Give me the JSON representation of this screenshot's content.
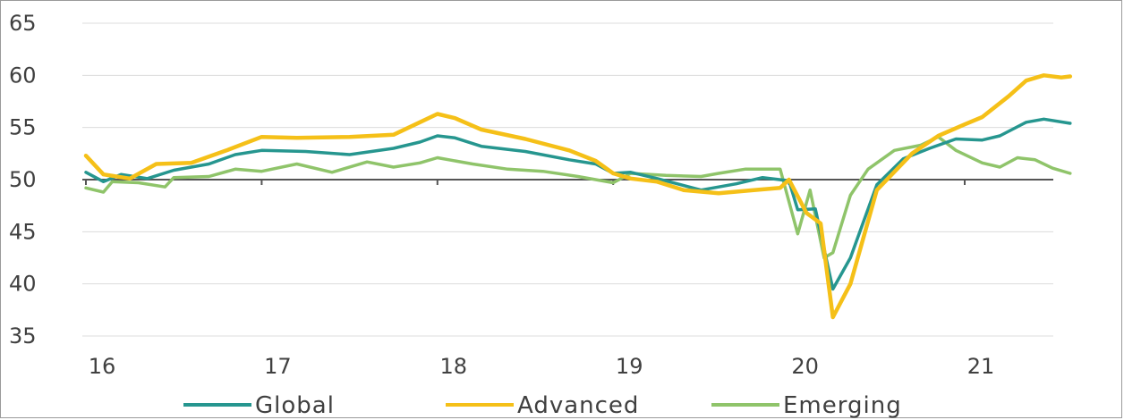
{
  "chart_data": {
    "type": "line",
    "title": "",
    "xlabel": "",
    "ylabel": "",
    "xlim": [
      2016.0,
      2021.65
    ],
    "ylim": [
      35,
      65
    ],
    "reference_line": 50,
    "grid": "horizontal",
    "legend_position": "bottom",
    "x_ticks": [
      {
        "value": 2016,
        "label": "16"
      },
      {
        "value": 2017,
        "label": "17"
      },
      {
        "value": 2018,
        "label": "18"
      },
      {
        "value": 2019,
        "label": "19"
      },
      {
        "value": 2020,
        "label": "20"
      },
      {
        "value": 2021,
        "label": "21"
      }
    ],
    "y_ticks": [
      {
        "value": 65,
        "label": "65"
      },
      {
        "value": 60,
        "label": "60"
      },
      {
        "value": 55,
        "label": "55"
      },
      {
        "value": 50,
        "label": "50"
      },
      {
        "value": 45,
        "label": "45"
      },
      {
        "value": 40,
        "label": "40"
      },
      {
        "value": 35,
        "label": "35"
      }
    ],
    "series": [
      {
        "name": "Emerging",
        "color": "#8fc46a",
        "x": [
          2016.0,
          2016.1,
          2016.15,
          2016.3,
          2016.45,
          2016.5,
          2016.7,
          2016.85,
          2017.0,
          2017.2,
          2017.4,
          2017.6,
          2017.75,
          2017.9,
          2018.0,
          2018.2,
          2018.4,
          2018.6,
          2018.8,
          2019.0,
          2019.1,
          2019.3,
          2019.5,
          2019.6,
          2019.75,
          2019.95,
          2020.05,
          2020.12,
          2020.2,
          2020.25,
          2020.35,
          2020.45,
          2020.6,
          2020.75,
          2020.85,
          2020.95,
          2021.1,
          2021.2,
          2021.3,
          2021.4,
          2021.5,
          2021.6
        ],
        "values": [
          49.2,
          48.8,
          49.8,
          49.7,
          49.3,
          50.2,
          50.3,
          51.0,
          50.8,
          51.5,
          50.7,
          51.7,
          51.2,
          51.6,
          52.1,
          51.5,
          51.0,
          50.8,
          50.3,
          49.7,
          50.6,
          50.4,
          50.3,
          50.6,
          51.0,
          51.0,
          44.8,
          49.0,
          42.5,
          43.0,
          48.5,
          51.0,
          52.8,
          53.3,
          54.1,
          52.8,
          51.6,
          51.2,
          52.1,
          51.9,
          51.1,
          50.6
        ]
      },
      {
        "name": "Global",
        "color": "#26968f",
        "x": [
          2016.0,
          2016.1,
          2016.2,
          2016.35,
          2016.5,
          2016.7,
          2016.85,
          2017.0,
          2017.25,
          2017.5,
          2017.75,
          2017.9,
          2018.0,
          2018.1,
          2018.25,
          2018.5,
          2018.75,
          2018.9,
          2019.0,
          2019.1,
          2019.25,
          2019.5,
          2019.7,
          2019.85,
          2020.0,
          2020.05,
          2020.15,
          2020.25,
          2020.35,
          2020.5,
          2020.65,
          2020.8,
          2020.95,
          2021.1,
          2021.2,
          2021.35,
          2021.45,
          2021.6
        ],
        "values": [
          50.7,
          49.8,
          50.5,
          50.1,
          50.9,
          51.5,
          52.4,
          52.8,
          52.7,
          52.4,
          53.0,
          53.6,
          54.2,
          54.0,
          53.2,
          52.7,
          51.9,
          51.5,
          50.6,
          50.7,
          50.1,
          49.0,
          49.6,
          50.2,
          49.9,
          47.1,
          47.2,
          39.5,
          42.5,
          49.5,
          52.0,
          53.0,
          53.9,
          53.8,
          54.2,
          55.5,
          55.8,
          55.4
        ]
      },
      {
        "name": "Advanced",
        "color": "#f5c018",
        "x": [
          2016.0,
          2016.1,
          2016.25,
          2016.4,
          2016.6,
          2016.8,
          2017.0,
          2017.2,
          2017.5,
          2017.75,
          2017.9,
          2018.0,
          2018.1,
          2018.25,
          2018.5,
          2018.75,
          2018.9,
          2019.0,
          2019.1,
          2019.25,
          2019.4,
          2019.6,
          2019.8,
          2019.95,
          2020.0,
          2020.1,
          2020.18,
          2020.25,
          2020.35,
          2020.5,
          2020.7,
          2020.85,
          2021.0,
          2021.1,
          2021.25,
          2021.35,
          2021.45,
          2021.55,
          2021.6
        ],
        "values": [
          52.3,
          50.5,
          50.1,
          51.5,
          51.6,
          52.8,
          54.1,
          54.0,
          54.1,
          54.3,
          55.5,
          56.3,
          55.9,
          54.8,
          53.9,
          52.8,
          51.8,
          50.6,
          50.1,
          49.8,
          49.0,
          48.7,
          49.0,
          49.2,
          50.0,
          46.8,
          45.8,
          36.8,
          40.0,
          49.0,
          52.5,
          54.2,
          55.3,
          56.0,
          58.0,
          59.5,
          60.0,
          59.8,
          59.9
        ]
      }
    ],
    "legend": [
      {
        "label": "Global",
        "color": "#26968f"
      },
      {
        "label": "Advanced",
        "color": "#f5c018"
      },
      {
        "label": "Emerging",
        "color": "#8fc46a"
      }
    ]
  }
}
